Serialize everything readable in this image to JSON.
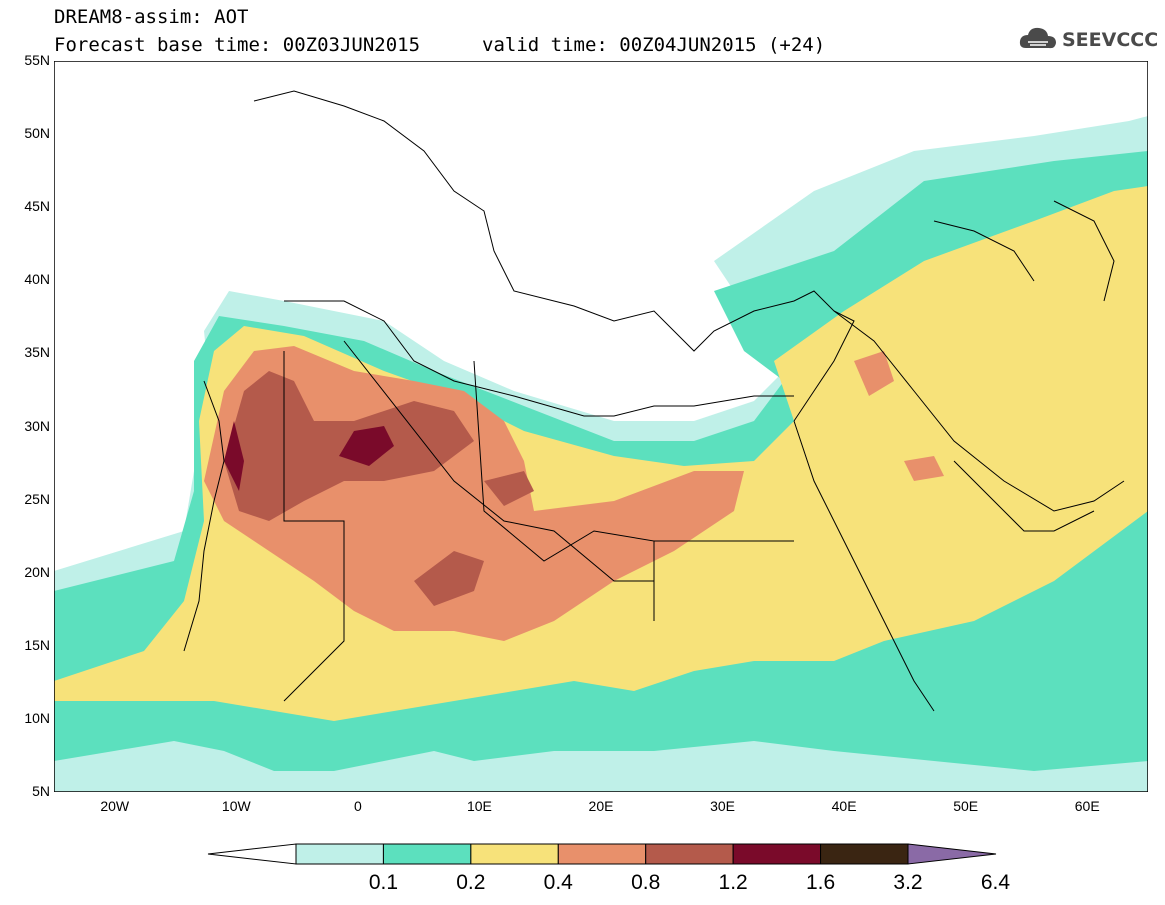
{
  "header": {
    "title": "DREAM8-assim: AOT",
    "base_time": "Forecast base time: 00Z03JUN2015",
    "valid_time": "valid time: 00Z04JUN2015 (+24)",
    "logo_text": "SEEVCCC",
    "logo_icon": "cloud-icon"
  },
  "map": {
    "lon_range": [
      -25,
      65
    ],
    "lat_range": [
      5,
      55
    ],
    "lat_labels": [
      "55N",
      "50N",
      "45N",
      "40N",
      "35N",
      "30N",
      "25N",
      "20N",
      "15N",
      "10N",
      "5N"
    ],
    "lon_labels": [
      "20W",
      "10W",
      "0",
      "10E",
      "20E",
      "30E",
      "40E",
      "50E",
      "60E"
    ]
  },
  "colorbar": {
    "colors": [
      "#ffffff",
      "#bff0e8",
      "#5ce0be",
      "#f7e27a",
      "#e8906b",
      "#b45a4b",
      "#7a0a2a",
      "#3a2512",
      "#8a6aa6"
    ],
    "labels": [
      "0.1",
      "0.2",
      "0.4",
      "0.8",
      "1.2",
      "1.6",
      "3.2",
      "6.4"
    ]
  }
}
